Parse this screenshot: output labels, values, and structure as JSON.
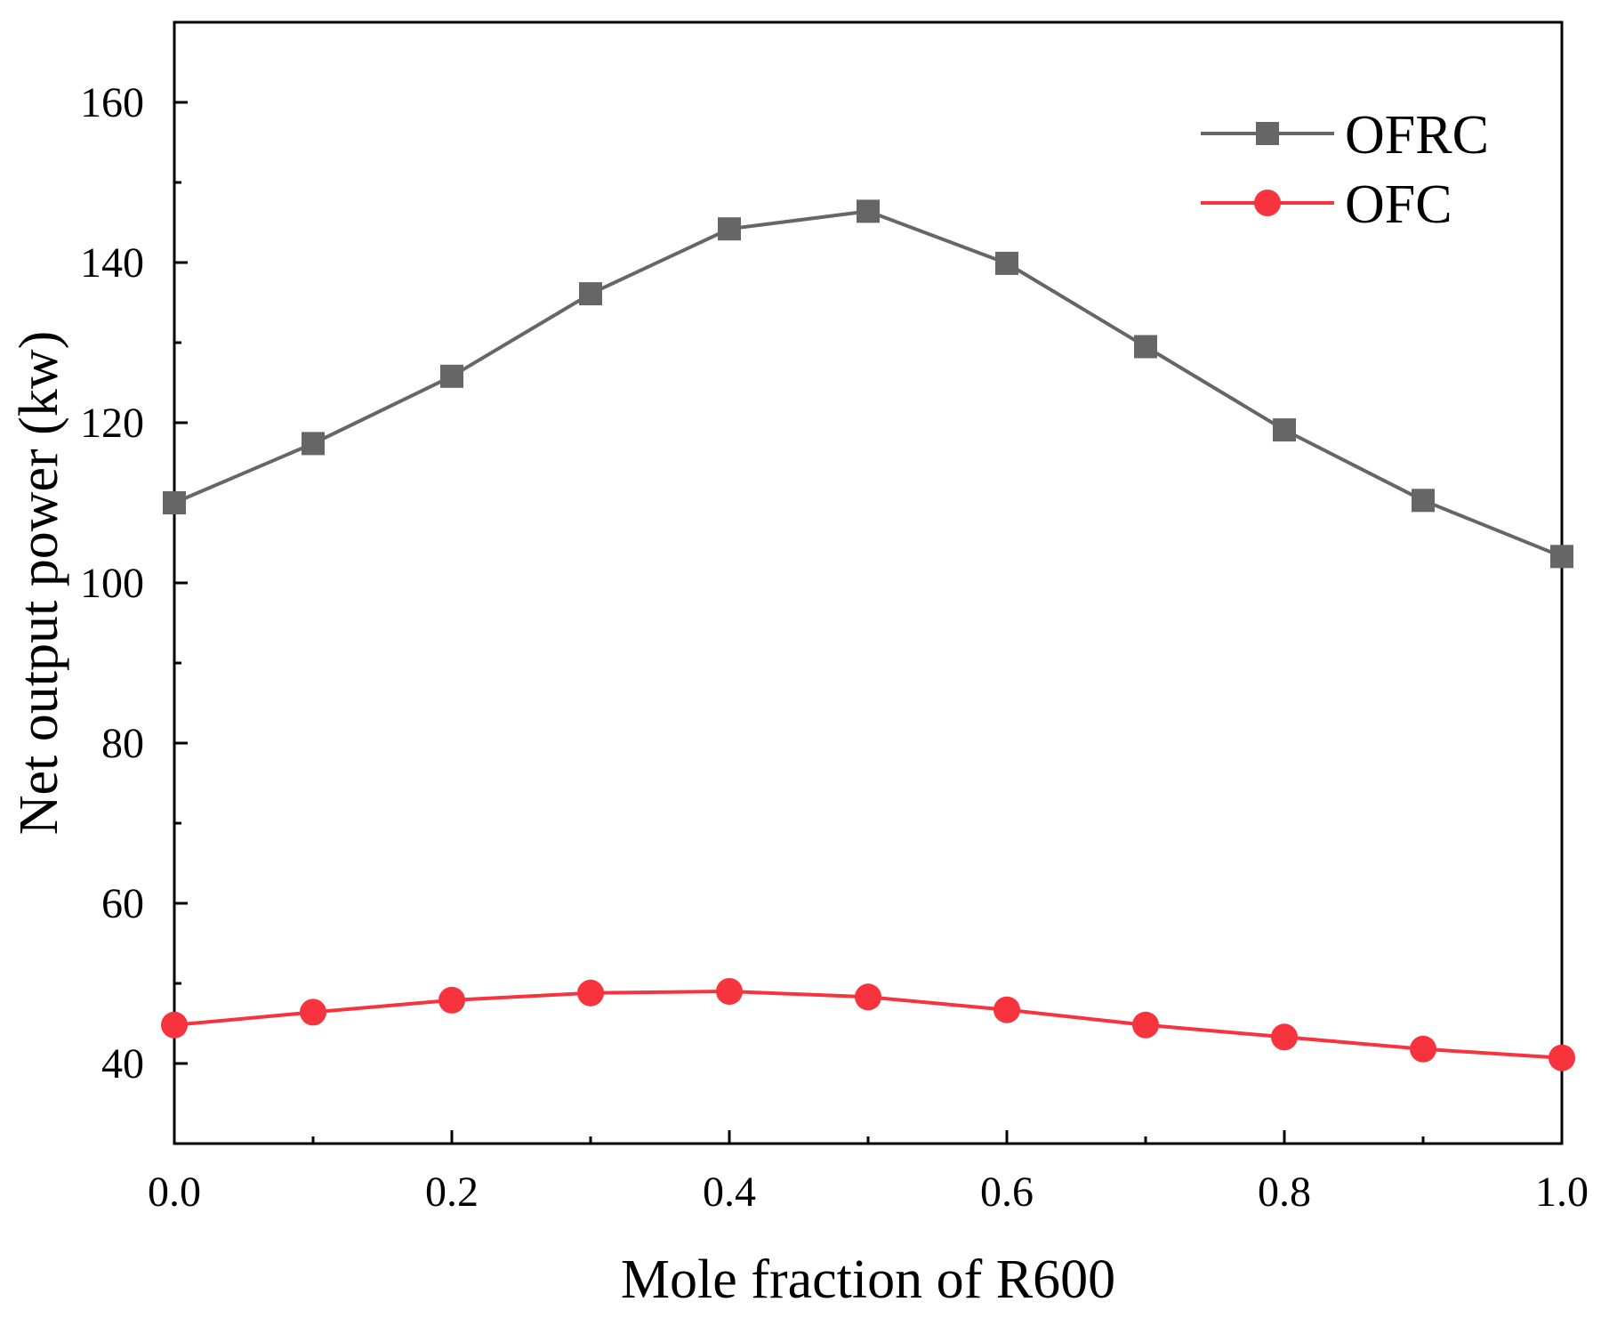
{
  "chart_data": {
    "type": "line",
    "title": "",
    "xlabel": "Mole fraction of R600",
    "ylabel": "Net output power (kw)",
    "xlim": [
      0.0,
      1.0
    ],
    "ylim": [
      30,
      170
    ],
    "xticks": [
      0.0,
      0.2,
      0.4,
      0.6,
      0.8,
      1.0
    ],
    "xtick_labels": [
      "0.0",
      "0.2",
      "0.4",
      "0.6",
      "0.8",
      "1.0"
    ],
    "xminor": [
      0.1,
      0.3,
      0.5,
      0.7,
      0.9
    ],
    "yticks": [
      40,
      60,
      80,
      100,
      120,
      140,
      160
    ],
    "ytick_labels": [
      "40",
      "60",
      "80",
      "100",
      "120",
      "140",
      "160"
    ],
    "yminor": [
      30,
      50,
      70,
      90,
      110,
      130,
      150,
      170
    ],
    "grid": false,
    "legend_position": "top-right",
    "x": [
      0.0,
      0.1,
      0.2,
      0.3,
      0.4,
      0.5,
      0.6,
      0.7,
      0.8,
      0.9,
      1.0
    ],
    "series": [
      {
        "name": "OFRC",
        "marker": "square",
        "color": "#666666",
        "values": [
          110.0,
          117.4,
          125.8,
          136.1,
          144.2,
          146.4,
          139.9,
          129.5,
          119.1,
          110.3,
          103.3
        ]
      },
      {
        "name": "OFC",
        "marker": "circle",
        "color": "#f7333d",
        "values": [
          44.8,
          46.4,
          47.9,
          48.8,
          49.0,
          48.3,
          46.7,
          44.8,
          43.3,
          41.8,
          40.7
        ]
      }
    ]
  }
}
